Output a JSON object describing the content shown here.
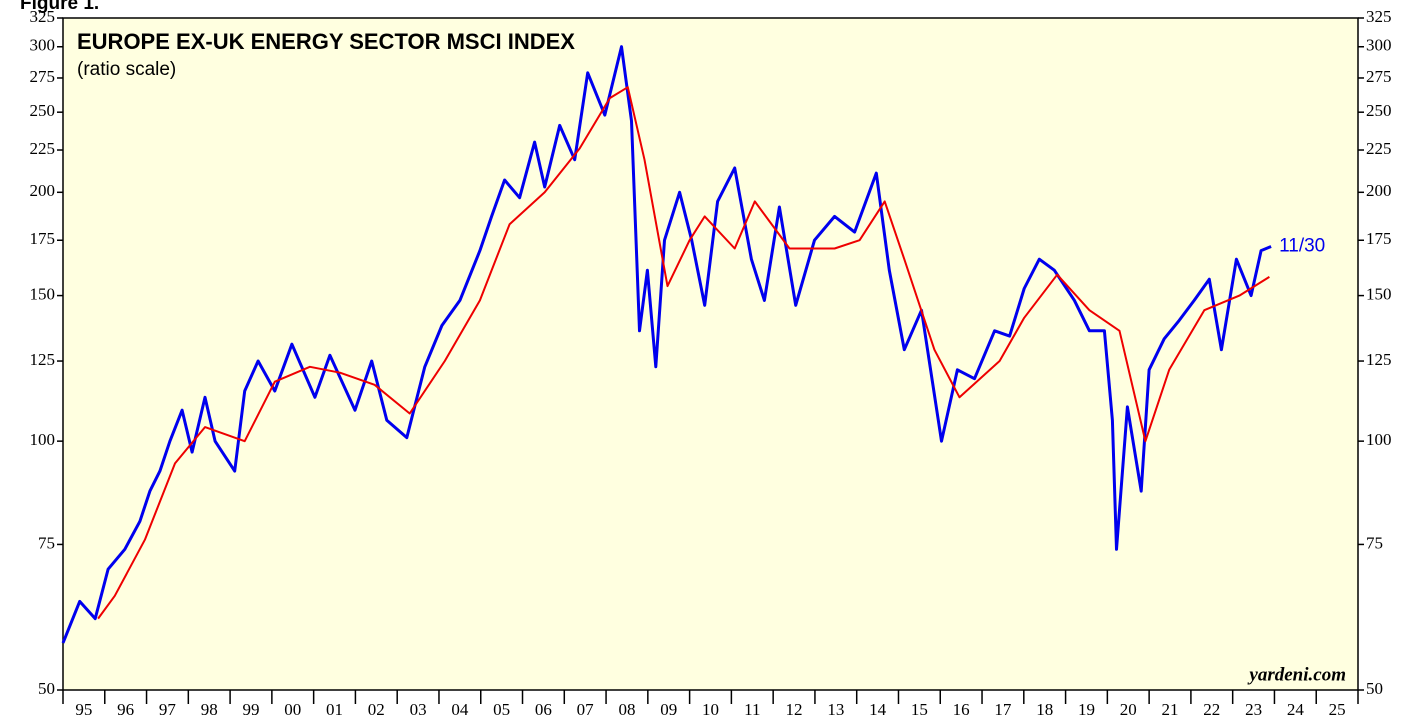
{
  "chart_data": {
    "type": "line",
    "figure_label": "Figure 1.",
    "title": "EUROPE EX-UK ENERGY SECTOR MSCI INDEX",
    "subtitle": "(ratio scale)",
    "source": "yardeni.com",
    "annotation": "11/30",
    "yscale": "log",
    "ylim": [
      50,
      325
    ],
    "yticks": [
      50,
      75,
      100,
      125,
      150,
      175,
      200,
      225,
      250,
      275,
      300,
      325
    ],
    "xlim": [
      1995,
      2026
    ],
    "xticks": [
      {
        "value": 1995,
        "label": "95"
      },
      {
        "value": 1996,
        "label": "96"
      },
      {
        "value": 1997,
        "label": "97"
      },
      {
        "value": 1998,
        "label": "98"
      },
      {
        "value": 1999,
        "label": "99"
      },
      {
        "value": 2000,
        "label": "00"
      },
      {
        "value": 2001,
        "label": "01"
      },
      {
        "value": 2002,
        "label": "02"
      },
      {
        "value": 2003,
        "label": "03"
      },
      {
        "value": 2004,
        "label": "04"
      },
      {
        "value": 2005,
        "label": "05"
      },
      {
        "value": 2006,
        "label": "06"
      },
      {
        "value": 2007,
        "label": "07"
      },
      {
        "value": 2008,
        "label": "08"
      },
      {
        "value": 2009,
        "label": "09"
      },
      {
        "value": 2010,
        "label": "10"
      },
      {
        "value": 2011,
        "label": "11"
      },
      {
        "value": 2012,
        "label": "12"
      },
      {
        "value": 2013,
        "label": "13"
      },
      {
        "value": 2014,
        "label": "14"
      },
      {
        "value": 2015,
        "label": "15"
      },
      {
        "value": 2016,
        "label": "16"
      },
      {
        "value": 2017,
        "label": "17"
      },
      {
        "value": 2018,
        "label": "18"
      },
      {
        "value": 2019,
        "label": "19"
      },
      {
        "value": 2020,
        "label": "20"
      },
      {
        "value": 2021,
        "label": "21"
      },
      {
        "value": 2022,
        "label": "22"
      },
      {
        "value": 2023,
        "label": "23"
      },
      {
        "value": 2024,
        "label": "24"
      },
      {
        "value": 2025,
        "label": "25"
      }
    ],
    "series": [
      {
        "color": "#0000ee",
        "x": [
          1995.0,
          1995.4,
          1995.77,
          1996.08,
          1996.48,
          1996.84,
          1997.08,
          1997.32,
          1997.56,
          1997.85,
          1998.09,
          1998.4,
          1998.64,
          1999.11,
          1999.35,
          1999.67,
          2000.07,
          2000.48,
          2001.03,
          2001.39,
          2001.99,
          2002.39,
          2002.75,
          2003.23,
          2003.66,
          2004.07,
          2004.5,
          2004.98,
          2005.26,
          2005.57,
          2005.93,
          2006.29,
          2006.53,
          2006.89,
          2007.25,
          2007.56,
          2007.97,
          2008.37,
          2008.61,
          2008.8,
          2008.99,
          2009.19,
          2009.4,
          2009.76,
          2010.05,
          2010.36,
          2010.67,
          2011.08,
          2011.48,
          2011.79,
          2012.15,
          2012.54,
          2012.99,
          2013.47,
          2013.95,
          2014.47,
          2014.78,
          2015.14,
          2015.55,
          2016.03,
          2016.41,
          2016.82,
          2017.3,
          2017.66,
          2018.01,
          2018.37,
          2018.73,
          2019.21,
          2019.57,
          2019.93,
          2020.12,
          2020.22,
          2020.48,
          2020.81,
          2021.0,
          2021.36,
          2021.72,
          2022.08,
          2022.44,
          2022.73,
          2023.09,
          2023.44,
          2023.68,
          2023.92
        ],
        "values": [
          57,
          64,
          61,
          70,
          74,
          80,
          87,
          92,
          100,
          109,
          97,
          113,
          100,
          92,
          115,
          125,
          115,
          131,
          113,
          127,
          109,
          125,
          106,
          101,
          123,
          138,
          148,
          170,
          187,
          207,
          197,
          230,
          203,
          241,
          219,
          279,
          248,
          300,
          244,
          136,
          161,
          123,
          175,
          200,
          175,
          146,
          195,
          214,
          166,
          148,
          192,
          146,
          175,
          187,
          179,
          211,
          161,
          129,
          144,
          100,
          122,
          119,
          136,
          134,
          153,
          166,
          161,
          148,
          136,
          136,
          106,
          74,
          110,
          87,
          122,
          133,
          140,
          148,
          157,
          129,
          166,
          150,
          170,
          172
        ]
      },
      {
        "color": "#ee0000",
        "x": [
          1995.84,
          1996.24,
          1996.96,
          1997.68,
          1998.4,
          1999.35,
          2000.07,
          2000.91,
          2001.63,
          2002.46,
          2003.3,
          2004.14,
          2004.98,
          2005.69,
          2006.53,
          2007.37,
          2008.09,
          2008.52,
          2008.92,
          2009.47,
          2010.0,
          2010.36,
          2011.08,
          2011.56,
          2012.39,
          2013.47,
          2014.07,
          2014.67,
          2015.14,
          2015.86,
          2016.46,
          2017.42,
          2018.01,
          2018.8,
          2019.57,
          2020.29,
          2020.91,
          2021.48,
          2022.32,
          2023.16,
          2023.88
        ],
        "values": [
          61,
          65,
          76,
          94,
          104,
          100,
          118,
          123,
          121,
          117,
          108,
          125,
          148,
          183,
          200,
          226,
          260,
          268,
          219,
          154,
          175,
          187,
          171,
          195,
          171,
          171,
          175,
          195,
          166,
          129,
          113,
          125,
          141,
          159,
          144,
          136,
          100,
          122,
          144,
          150,
          158
        ]
      }
    ]
  }
}
